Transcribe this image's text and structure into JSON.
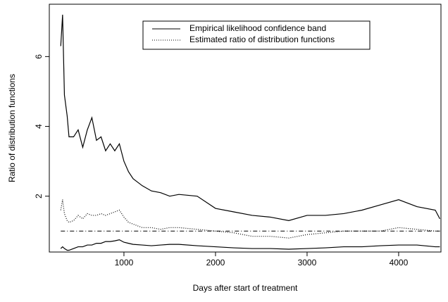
{
  "chart_data": {
    "type": "line",
    "x_label": "Days after start of  treatment",
    "y_label": "Ratio of distribution functions",
    "x": [
      310,
      330,
      350,
      380,
      400,
      450,
      500,
      550,
      600,
      650,
      700,
      750,
      800,
      850,
      900,
      950,
      1000,
      1050,
      1100,
      1200,
      1300,
      1400,
      1500,
      1600,
      1800,
      2000,
      2200,
      2400,
      2600,
      2800,
      3000,
      3200,
      3400,
      3600,
      3800,
      4000,
      4200,
      4400,
      4450
    ],
    "series": [
      {
        "name": "Empirical likelihood confidence band",
        "color": "#000000",
        "dash": "solid",
        "upper": [
          6.3,
          7.2,
          4.9,
          4.3,
          3.7,
          3.7,
          3.9,
          3.4,
          3.9,
          4.25,
          3.6,
          3.7,
          3.3,
          3.5,
          3.3,
          3.5,
          3.0,
          2.7,
          2.5,
          2.3,
          2.15,
          2.1,
          2.0,
          2.05,
          2.0,
          1.65,
          1.55,
          1.45,
          1.4,
          1.3,
          1.45,
          1.45,
          1.5,
          1.6,
          1.75,
          1.9,
          1.7,
          1.6,
          1.35
        ],
        "lower": [
          0.5,
          0.55,
          0.5,
          0.45,
          0.45,
          0.5,
          0.55,
          0.55,
          0.6,
          0.6,
          0.65,
          0.65,
          0.7,
          0.7,
          0.72,
          0.75,
          0.68,
          0.65,
          0.62,
          0.6,
          0.58,
          0.6,
          0.62,
          0.62,
          0.58,
          0.55,
          0.52,
          0.5,
          0.5,
          0.48,
          0.5,
          0.52,
          0.55,
          0.55,
          0.58,
          0.6,
          0.6,
          0.55,
          0.55
        ]
      },
      {
        "name": "Estimated ratio of distribution functions",
        "color": "#000000",
        "dash": "dotted",
        "values": [
          1.6,
          1.9,
          1.5,
          1.3,
          1.25,
          1.3,
          1.45,
          1.35,
          1.5,
          1.45,
          1.45,
          1.5,
          1.45,
          1.5,
          1.55,
          1.6,
          1.4,
          1.25,
          1.2,
          1.1,
          1.1,
          1.05,
          1.1,
          1.1,
          1.05,
          1.0,
          0.95,
          0.85,
          0.85,
          0.8,
          0.9,
          0.95,
          1.0,
          1.0,
          1.0,
          1.1,
          1.05,
          1.0,
          1.0
        ]
      }
    ],
    "reference_line": 1,
    "xlim": [
      185,
      4462
    ],
    "ylim": [
      0.4,
      7.5
    ],
    "xticks": [
      1000,
      2000,
      3000,
      4000
    ],
    "yticks": [
      2,
      4,
      6
    ],
    "legend": "top-right"
  }
}
